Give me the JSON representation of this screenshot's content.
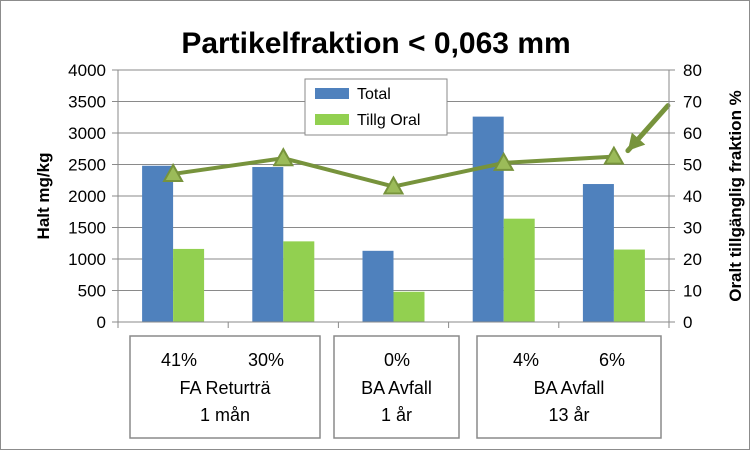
{
  "chart_data": {
    "type": "bar",
    "title": "Partikelfraktion < 0,063 mm",
    "ylabel": "Halt mg/kg",
    "y2label": "Oralt tillgänglig  fraktion %",
    "ylim": [
      0,
      4000
    ],
    "y2lim": [
      0,
      80
    ],
    "yticks": [
      "0",
      "500",
      "1000",
      "1500",
      "2000",
      "2500",
      "3000",
      "3500",
      "4000"
    ],
    "y2ticks": [
      "0",
      "10",
      "20",
      "30",
      "40",
      "50",
      "60",
      "70",
      "80"
    ],
    "category_count": 5,
    "grid": true,
    "legend_position": "top-center",
    "series": [
      {
        "name": "Total",
        "type": "bar",
        "axis": "left",
        "color": "#4f81bd",
        "values": [
          2480,
          2460,
          1130,
          3260,
          2190
        ]
      },
      {
        "name": "Tillg Oral",
        "type": "bar",
        "axis": "left",
        "color": "#92d050",
        "values": [
          1160,
          1280,
          480,
          1640,
          1150
        ]
      },
      {
        "type": "line",
        "axis": "right",
        "color": "#77933c",
        "values": [
          47,
          52,
          43,
          50.5,
          52.5
        ]
      }
    ],
    "annotation": {
      "type": "arrow",
      "color": "#77933c"
    },
    "groups": [
      {
        "percents": [
          "41%",
          "30%"
        ],
        "line1": "FA Returträ",
        "line2": "1 mån"
      },
      {
        "percents": [
          "0%"
        ],
        "line1": "BA Avfall",
        "line2": "1 år"
      },
      {
        "percents": [
          "4%",
          "6%"
        ],
        "line1": "BA Avfall",
        "line2": "13 år"
      }
    ]
  }
}
